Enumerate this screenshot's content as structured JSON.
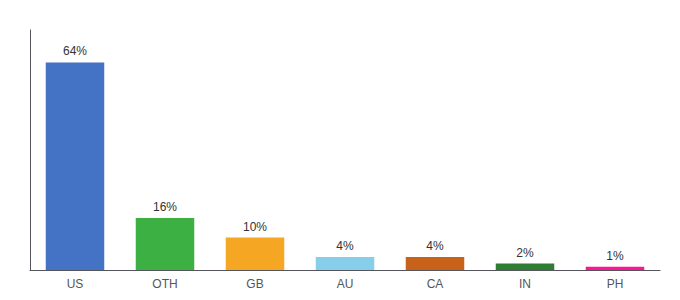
{
  "chart_data": {
    "type": "bar",
    "categories": [
      "US",
      "OTH",
      "GB",
      "AU",
      "CA",
      "IN",
      "PH"
    ],
    "values": [
      64,
      16,
      10,
      4,
      4,
      2,
      1
    ],
    "value_labels": [
      "64%",
      "16%",
      "10%",
      "4%",
      "4%",
      "2%",
      "1%"
    ],
    "colors": [
      "#4472c4",
      "#3cb043",
      "#f5a623",
      "#87ceeb",
      "#c8611a",
      "#2e7d32",
      "#ff1493"
    ],
    "ylim": [
      0,
      74
    ],
    "grid": false,
    "data_labels": true,
    "tick_labels": "x"
  }
}
